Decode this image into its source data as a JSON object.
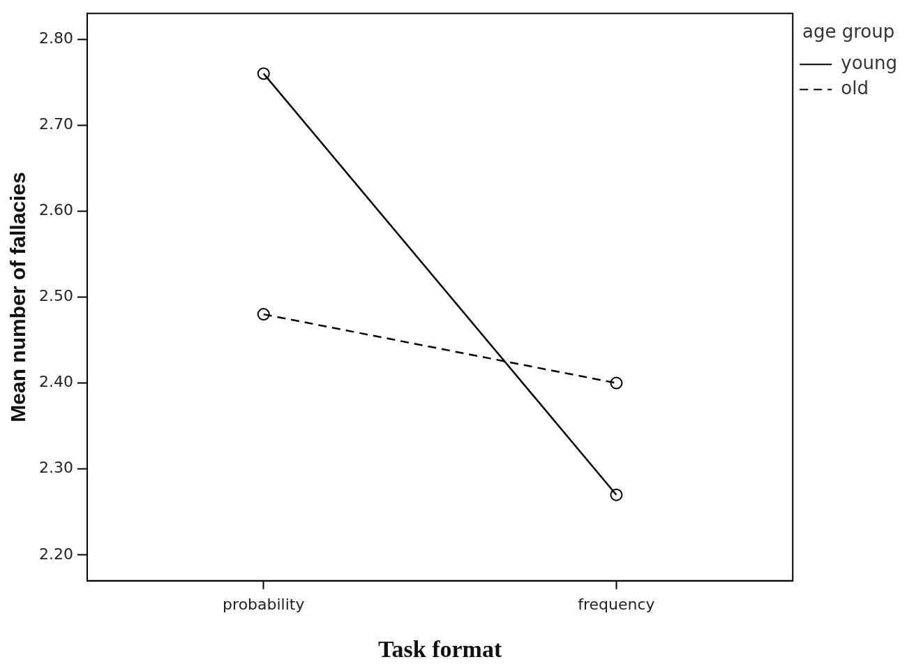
{
  "chart_data": {
    "type": "line",
    "xlabel": "Task format",
    "ylabel": "Mean number of fallacies",
    "legend_title": "age group",
    "legend": "top right",
    "marker": "circle",
    "grid": false,
    "categories": [
      "probability",
      "frequency"
    ],
    "series": [
      {
        "name": "young",
        "color": "#000000",
        "line_style": "solid",
        "values": [
          2.76,
          2.27
        ]
      },
      {
        "name": "old",
        "color": "#000000",
        "line_style": "dashed",
        "values": [
          2.48,
          2.4
        ]
      }
    ],
    "ylim": [
      2.17,
      2.83
    ],
    "yticks": [
      {
        "value": 2.2,
        "label": "2.20"
      },
      {
        "value": 2.3,
        "label": "2.30"
      },
      {
        "value": 2.4,
        "label": "2.40"
      },
      {
        "value": 2.5,
        "label": "2.50"
      },
      {
        "value": 2.6,
        "label": "2.60"
      },
      {
        "value": 2.7,
        "label": "2.70"
      },
      {
        "value": 2.8,
        "label": "2.80"
      }
    ]
  }
}
